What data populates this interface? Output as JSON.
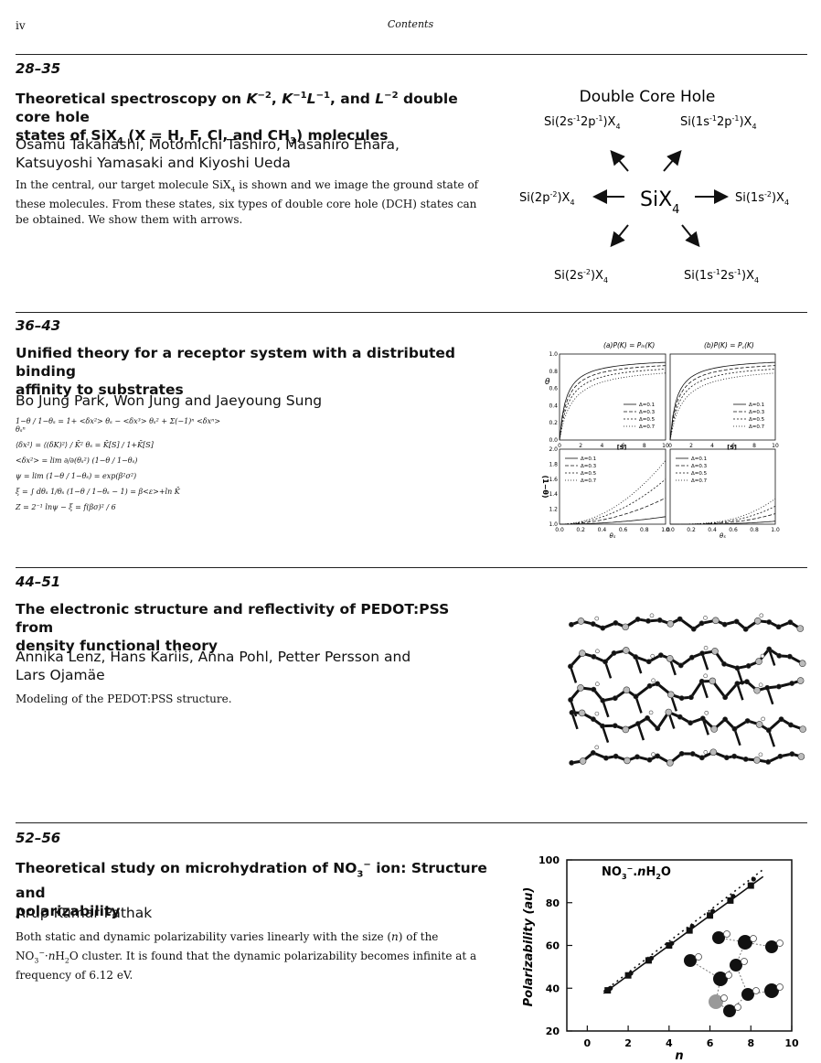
{
  "header": {
    "page_number": "iv",
    "running_title": "Contents"
  },
  "articles": [
    {
      "pages": "28–35",
      "title": {
        "a": "Theoretical spectroscopy on ",
        "k2": "K",
        "k2sup": "−2",
        "sep1": ", ",
        "kl1": "K",
        "kl1sup": "−1",
        "kl2": "L",
        "kl2sup": "−1",
        "and": ", and ",
        "l2": "L",
        "l2sup": "−2",
        "b": " double core hole",
        "c": "states of SiX",
        "c_sub": "4",
        "d": " (X = H, F, Cl, and CH",
        "d_sub": "3",
        "e": ") molecules"
      },
      "authors": [
        "Osamu Takahashi, Motomichi Tashiro, Masahiro Ehara,",
        "Katsuyoshi Yamasaki and Kiyoshi Ueda"
      ],
      "abstract": {
        "a": "In the central, our target molecule SiX",
        "sub": "4",
        "b": " is shown and we image the ground state of these molecules. From these states, six types of double core hole (DCH) states can be obtained. We show them with arrows."
      },
      "figure": {
        "title": "Double Core Hole",
        "center": {
          "base": "SiX",
          "sub": "4"
        },
        "states": [
          {
            "base": "Si(2s",
            "sup1": "-1",
            "mid": "2p",
            "sup2": "-1",
            "end": ")X",
            "sub": "4"
          },
          {
            "base": "Si(1s",
            "sup1": "-1",
            "mid": "2p",
            "sup2": "-1",
            "end": ")X",
            "sub": "4"
          },
          {
            "base": "Si(2p",
            "sup1": "-2",
            "end": ")X",
            "sub": "4"
          },
          {
            "base": "Si(1s",
            "sup1": "-2",
            "end": ")X",
            "sub": "4"
          },
          {
            "base": "Si(2s",
            "sup1": "-2",
            "end": ")X",
            "sub": "4"
          },
          {
            "base": "Si(1s",
            "sup1": "-1",
            "mid": "2s",
            "sup2": "-1",
            "end": ")X",
            "sub": "4"
          }
        ]
      }
    },
    {
      "pages": "36–43",
      "title": [
        "Unified theory for a receptor system with a distributed binding",
        "affinity to substrates"
      ],
      "authors": [
        "Bo Jung Park, Won Jung and Jaeyoung Sung"
      ],
      "equations": [
        "1−θ / 1−θₛ = 1+ <δx²> θₛ − <δx³> θₛ² + Σ(−1)ⁿ <δxⁿ> θₛⁿ",
        "⟨δx²⟩ = ⟨(δK)²⟩ / K̄²     θₛ = K̄[S] / 1+K̄[S]",
        "<δx²> = lim ∂/∂(θₛ²) (1−θ / 1−θₛ)",
        "ψ = lim (1−θ / 1−θₛ) = exp(β²σ²)",
        "ξ = ∫ dθₛ 1/θₛ (1−θ / 1−θₛ − 1) = β<ε>+ln K̄",
        "Z = 2⁻¹ lnψ − ξ = f(βσ)² / 6"
      ],
      "figure_a_title": "(a)P(K) = Pₗₙ(K)",
      "figure_b_title": "(b)P(K) = P꜀(K)"
    },
    {
      "pages": "44–51",
      "title": [
        "The electronic structure and reflectivity of PEDOT:PSS from",
        "density functional theory"
      ],
      "authors": [
        "Annika Lenz, Hans Kariis, Anna Pohl, Petter Persson and",
        "Lars Ojamäe"
      ],
      "abstract": "Modeling of the PEDOT:PSS structure."
    },
    {
      "pages": "52–56",
      "title": {
        "a": "Theoretical study on microhydration of NO",
        "sub": "3",
        "sup": "−",
        "b": " ion: Structure and",
        "c": "polarizability"
      },
      "authors": [
        "Arup Kumar Pathak"
      ],
      "abstract": {
        "a": "Both static and dynamic polarizability varies linearly with the size (",
        "n": "n",
        "b": ") of the NO",
        "sub": "3",
        "sup": "−",
        "c": "·",
        "d": "H",
        "d_sub": "2",
        "e": "O cluster. It is found that the dynamic polarizability becomes infinite at a frequency of 6.12 eV."
      }
    }
  ],
  "chart_data": [
    {
      "type": "line",
      "panel": "(a) top",
      "xlabel": "[S]",
      "ylabel": "θ",
      "xlim": [
        0,
        10
      ],
      "ylim": [
        0.0,
        1.0
      ],
      "x_ticks": [
        "0",
        "2",
        "4",
        "6",
        "8",
        "10"
      ],
      "y_ticks": [
        "0.0",
        "0.2",
        "0.4",
        "0.6",
        "0.8",
        "1.0"
      ],
      "legend": [
        "Δ=0.1",
        "Δ=0.3",
        "Δ=0.5",
        "Δ=0.7"
      ],
      "legend_placement": "bottom-right"
    },
    {
      "type": "line",
      "panel": "(b) top",
      "xlabel": "[S]",
      "xlim": [
        0,
        10
      ],
      "ylim": [
        0.0,
        1.0
      ],
      "x_ticks": [
        "0",
        "2",
        "4",
        "6",
        "8",
        "10"
      ],
      "legend": [
        "Δ=0.1",
        "Δ=0.3",
        "Δ=0.5",
        "Δ=0.7"
      ],
      "legend_placement": "bottom-right"
    },
    {
      "type": "line",
      "panel": "(a) bottom",
      "xlabel": "θₛ",
      "ylabel": "(1−θ)",
      "xlim": [
        0.0,
        1.0
      ],
      "ylim": [
        1.0,
        2.0
      ],
      "x_ticks": [
        "0.0",
        "0.2",
        "0.4",
        "0.6",
        "0.8",
        "1.0"
      ],
      "y_ticks": [
        "1.0",
        "1.2",
        "1.4",
        "1.6",
        "1.8",
        "2.0"
      ],
      "legend": [
        "Δ=0.1",
        "Δ=0.3",
        "Δ=0.5",
        "Δ=0.7"
      ],
      "legend_placement": "top-left"
    },
    {
      "type": "line",
      "panel": "(b) bottom",
      "xlabel": "θₛ",
      "xlim": [
        0.0,
        1.0
      ],
      "ylim": [
        1.0,
        2.0
      ],
      "x_ticks": [
        "0.0",
        "0.2",
        "0.4",
        "0.6",
        "0.8",
        "1.0"
      ],
      "legend": [
        "Δ=0.1",
        "Δ=0.3",
        "Δ=0.5",
        "Δ=0.7"
      ],
      "legend_placement": "top-left"
    },
    {
      "type": "scatter",
      "title": {
        "a": "NO",
        "sub": "3",
        "sup": "−",
        "b": ".",
        "n": "n",
        "c": "H",
        "c_sub": "2",
        "d": "O"
      },
      "xlabel": "n",
      "ylabel": "Polarizability (au)",
      "xlim": [
        -1,
        10
      ],
      "ylim": [
        20,
        100
      ],
      "x_ticks": [
        0,
        2,
        4,
        6,
        8,
        10
      ],
      "y_ticks": [
        20,
        40,
        60,
        80,
        100
      ],
      "series": [
        {
          "marker": "square",
          "x": [
            1,
            2,
            3,
            4,
            5,
            6,
            7,
            8
          ],
          "y": [
            39,
            46,
            53,
            60,
            67,
            74,
            81,
            88
          ]
        },
        {
          "marker": "circle",
          "x": [
            1,
            2,
            3,
            4,
            5,
            6,
            7,
            8
          ],
          "y": [
            40,
            47,
            54,
            61,
            69,
            76,
            83,
            91
          ]
        }
      ]
    }
  ]
}
